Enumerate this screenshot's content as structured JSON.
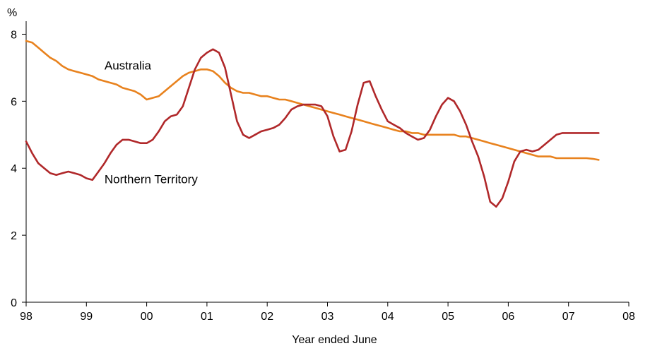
{
  "chart_data": {
    "type": "line",
    "xlabel": "Year ended June",
    "ylabel": "%",
    "xlim": [
      1998,
      2008
    ],
    "ylim": [
      0,
      8.6
    ],
    "x_ticks": [
      {
        "value": 1998,
        "label": "98"
      },
      {
        "value": 1999,
        "label": "99"
      },
      {
        "value": 2000,
        "label": "00"
      },
      {
        "value": 2001,
        "label": "01"
      },
      {
        "value": 2002,
        "label": "02"
      },
      {
        "value": 2003,
        "label": "03"
      },
      {
        "value": 2004,
        "label": "04"
      },
      {
        "value": 2005,
        "label": "05"
      },
      {
        "value": 2006,
        "label": "06"
      },
      {
        "value": 2007,
        "label": "07"
      },
      {
        "value": 2008,
        "label": "08"
      }
    ],
    "y_ticks": [
      {
        "value": 0,
        "label": "0"
      },
      {
        "value": 2,
        "label": "2"
      },
      {
        "value": 4,
        "label": "4"
      },
      {
        "value": 6,
        "label": "6"
      },
      {
        "value": 8,
        "label": "8"
      }
    ],
    "grid": false,
    "series": [
      {
        "name": "Australia",
        "color": "#E8821E",
        "x": [
          1998.0,
          1998.1,
          1998.2,
          1998.3,
          1998.4,
          1998.5,
          1998.6,
          1998.7,
          1998.8,
          1998.9,
          1999.0,
          1999.1,
          1999.2,
          1999.3,
          1999.4,
          1999.5,
          1999.6,
          1999.7,
          1999.8,
          1999.9,
          2000.0,
          2000.1,
          2000.2,
          2000.3,
          2000.4,
          2000.5,
          2000.6,
          2000.7,
          2000.8,
          2000.9,
          2001.0,
          2001.1,
          2001.2,
          2001.3,
          2001.4,
          2001.5,
          2001.6,
          2001.7,
          2001.8,
          2001.9,
          2002.0,
          2002.1,
          2002.2,
          2002.3,
          2002.4,
          2002.5,
          2002.6,
          2002.7,
          2002.8,
          2002.9,
          2003.0,
          2003.1,
          2003.2,
          2003.3,
          2003.4,
          2003.5,
          2003.6,
          2003.7,
          2003.8,
          2003.9,
          2004.0,
          2004.1,
          2004.2,
          2004.3,
          2004.4,
          2004.5,
          2004.6,
          2004.7,
          2004.8,
          2004.9,
          2005.0,
          2005.1,
          2005.2,
          2005.3,
          2005.4,
          2005.5,
          2005.6,
          2005.7,
          2005.8,
          2005.9,
          2006.0,
          2006.1,
          2006.2,
          2006.3,
          2006.4,
          2006.5,
          2006.6,
          2006.7,
          2006.8,
          2006.9,
          2007.0,
          2007.1,
          2007.2,
          2007.3,
          2007.4,
          2007.5
        ],
        "values": [
          7.8,
          7.75,
          7.6,
          7.45,
          7.3,
          7.2,
          7.05,
          6.95,
          6.9,
          6.85,
          6.8,
          6.75,
          6.65,
          6.6,
          6.55,
          6.5,
          6.4,
          6.35,
          6.3,
          6.2,
          6.05,
          6.1,
          6.15,
          6.3,
          6.45,
          6.6,
          6.75,
          6.85,
          6.9,
          6.95,
          6.95,
          6.9,
          6.75,
          6.55,
          6.4,
          6.3,
          6.25,
          6.25,
          6.2,
          6.15,
          6.15,
          6.1,
          6.05,
          6.05,
          6.0,
          5.95,
          5.9,
          5.85,
          5.8,
          5.75,
          5.7,
          5.65,
          5.6,
          5.55,
          5.5,
          5.45,
          5.4,
          5.35,
          5.3,
          5.25,
          5.2,
          5.15,
          5.1,
          5.1,
          5.05,
          5.05,
          5.0,
          5.0,
          5.0,
          5.0,
          5.0,
          5.0,
          4.95,
          4.95,
          4.9,
          4.85,
          4.8,
          4.75,
          4.7,
          4.65,
          4.6,
          4.55,
          4.5,
          4.45,
          4.4,
          4.35,
          4.35,
          4.35,
          4.3,
          4.3,
          4.3,
          4.3,
          4.3,
          4.3,
          4.28,
          4.25
        ]
      },
      {
        "name": "Northern Territory",
        "color": "#B0282A",
        "x": [
          1998.0,
          1998.1,
          1998.2,
          1998.3,
          1998.4,
          1998.5,
          1998.6,
          1998.7,
          1998.8,
          1998.9,
          1999.0,
          1999.1,
          1999.2,
          1999.3,
          1999.4,
          1999.5,
          1999.6,
          1999.7,
          1999.8,
          1999.9,
          2000.0,
          2000.1,
          2000.2,
          2000.3,
          2000.4,
          2000.5,
          2000.6,
          2000.7,
          2000.8,
          2000.9,
          2001.0,
          2001.1,
          2001.2,
          2001.3,
          2001.4,
          2001.5,
          2001.6,
          2001.7,
          2001.8,
          2001.9,
          2002.0,
          2002.1,
          2002.2,
          2002.3,
          2002.4,
          2002.5,
          2002.6,
          2002.7,
          2002.8,
          2002.9,
          2003.0,
          2003.1,
          2003.2,
          2003.3,
          2003.4,
          2003.5,
          2003.6,
          2003.7,
          2003.8,
          2003.9,
          2004.0,
          2004.1,
          2004.2,
          2004.3,
          2004.4,
          2004.5,
          2004.6,
          2004.7,
          2004.8,
          2004.9,
          2005.0,
          2005.1,
          2005.2,
          2005.3,
          2005.4,
          2005.5,
          2005.6,
          2005.7,
          2005.8,
          2005.9,
          2006.0,
          2006.1,
          2006.2,
          2006.3,
          2006.4,
          2006.5,
          2006.6,
          2006.7,
          2006.8,
          2006.9,
          2007.0,
          2007.1,
          2007.2,
          2007.3,
          2007.4,
          2007.5
        ],
        "values": [
          4.8,
          4.45,
          4.15,
          4.0,
          3.85,
          3.8,
          3.85,
          3.9,
          3.85,
          3.8,
          3.7,
          3.65,
          3.9,
          4.15,
          4.45,
          4.7,
          4.85,
          4.85,
          4.8,
          4.75,
          4.75,
          4.85,
          5.1,
          5.4,
          5.55,
          5.6,
          5.85,
          6.4,
          6.95,
          7.3,
          7.45,
          7.55,
          7.45,
          7.0,
          6.2,
          5.4,
          5.0,
          4.9,
          5.0,
          5.1,
          5.15,
          5.2,
          5.3,
          5.5,
          5.75,
          5.85,
          5.9,
          5.9,
          5.9,
          5.85,
          5.55,
          4.95,
          4.5,
          4.55,
          5.1,
          5.9,
          6.55,
          6.6,
          6.15,
          5.75,
          5.4,
          5.3,
          5.2,
          5.05,
          4.95,
          4.85,
          4.9,
          5.15,
          5.55,
          5.9,
          6.1,
          6.0,
          5.7,
          5.3,
          4.8,
          4.35,
          3.75,
          3.0,
          2.85,
          3.1,
          3.6,
          4.2,
          4.5,
          4.55,
          4.5,
          4.55,
          4.7,
          4.85,
          5.0,
          5.05,
          5.05,
          5.05,
          5.05,
          5.05,
          5.05,
          5.05
        ]
      }
    ],
    "annotations": [
      {
        "text": "Australia",
        "series": "Australia"
      },
      {
        "text": "Northern Territory",
        "series": "Northern Territory"
      }
    ]
  }
}
